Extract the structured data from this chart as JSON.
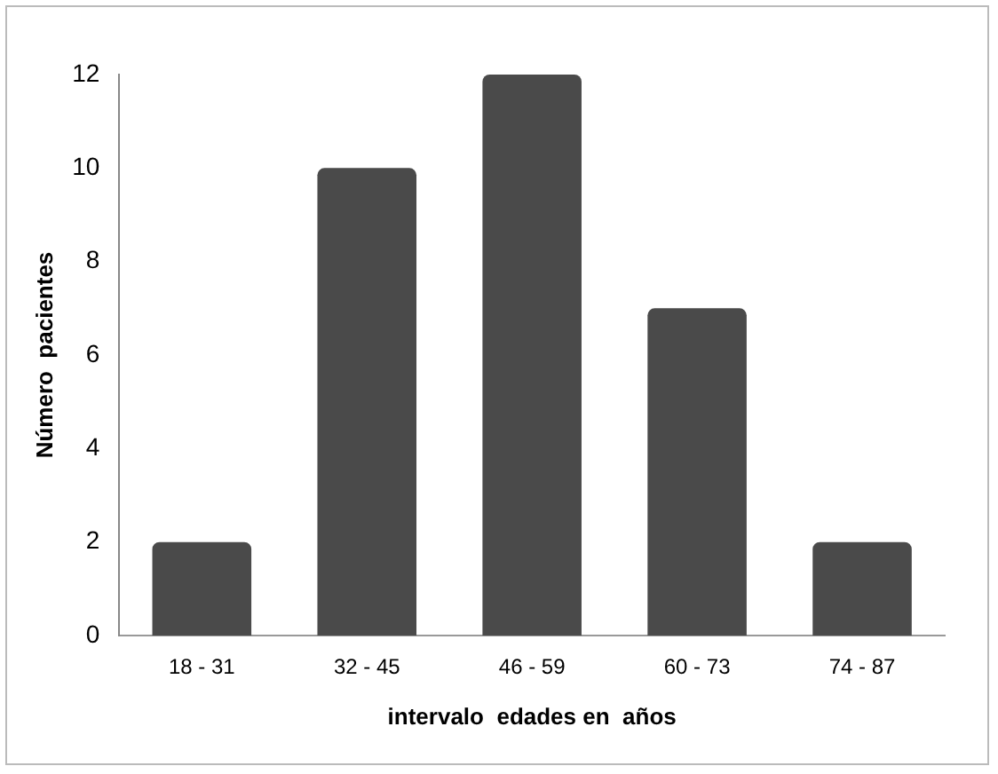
{
  "chart_data": {
    "type": "bar",
    "xlabel": "intervalo  edades en  años",
    "ylabel": "Número  pacientes",
    "categories": [
      "18 - 31",
      "32 - 45",
      "46 - 59",
      "60 - 73",
      "74 - 87"
    ],
    "values": [
      2,
      10,
      12,
      7,
      2
    ],
    "color": "#4a4a4a",
    "ylim": [
      0,
      12
    ],
    "yticks": [
      0,
      2,
      4,
      6,
      8,
      10,
      12
    ],
    "grid": false,
    "legend": false
  }
}
